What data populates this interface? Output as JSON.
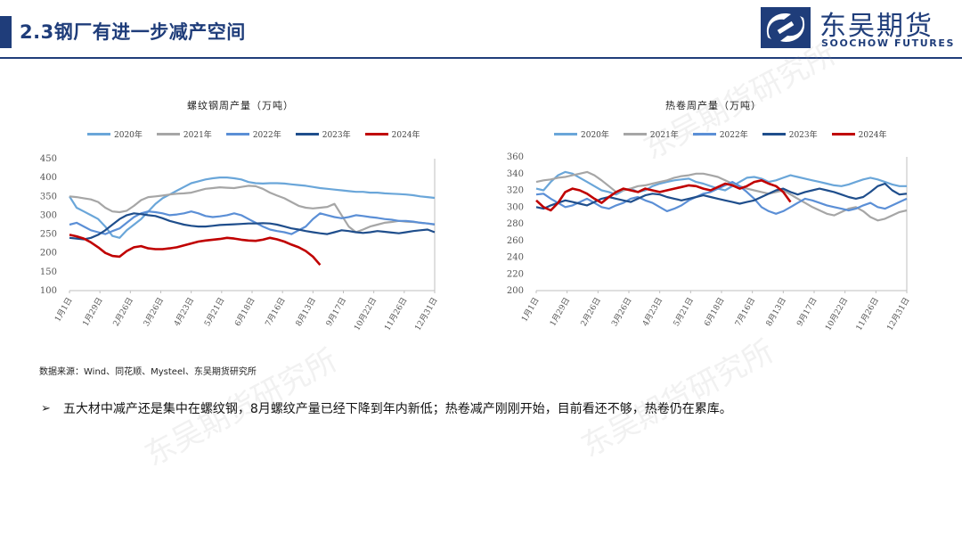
{
  "header": {
    "title": "2.3钢厂有进一步减产空间",
    "logo_cn": "东吴期货",
    "logo_en": "SOOCHOW FUTURES"
  },
  "colors": {
    "brand": "#1f3d7a",
    "s2020": "#6aa6d9",
    "s2021": "#a6a6a6",
    "s2022": "#5b8fd6",
    "s2023": "#1f4e8c",
    "s2024": "#c00000"
  },
  "watermark": "东吴期货研究所",
  "source_note": "数据来源：Wind、同花顺、Mysteel、东吴期货研究所",
  "bullet": {
    "symbol": "➢",
    "text": "五大材中减产还是集中在螺纹钢，8月螺纹产量已经下降到年内新低；热卷减产刚刚开始，目前看还不够，热卷仍在累库。"
  },
  "chart_data": [
    {
      "type": "line",
      "title": "螺纹钢周产量（万吨）",
      "x_ticks": [
        "1月1日",
        "1月29日",
        "2月26日",
        "3月26日",
        "4月23日",
        "5月21日",
        "6月18日",
        "7月16日",
        "8月13日",
        "9月17日",
        "10月22日",
        "11月26日",
        "12月31日"
      ],
      "x_weeks": 52,
      "ylim": [
        100,
        450
      ],
      "y_ticks": [
        100,
        150,
        200,
        250,
        300,
        350,
        400,
        450
      ],
      "grid": false,
      "legend": "top",
      "series": [
        {
          "name": "2020年",
          "color_key": "s2020",
          "values": [
            350,
            320,
            310,
            300,
            290,
            270,
            245,
            240,
            260,
            275,
            290,
            310,
            330,
            345,
            355,
            365,
            375,
            385,
            390,
            395,
            398,
            400,
            400,
            398,
            395,
            388,
            385,
            384,
            385,
            385,
            384,
            382,
            380,
            378,
            375,
            372,
            370,
            368,
            366,
            364,
            362,
            362,
            360,
            360,
            358,
            357,
            356,
            355,
            353,
            350,
            348,
            346
          ]
        },
        {
          "name": "2021年",
          "color_key": "s2021",
          "values": [
            350,
            348,
            345,
            342,
            335,
            320,
            310,
            308,
            312,
            325,
            340,
            348,
            350,
            352,
            355,
            357,
            358,
            360,
            365,
            370,
            372,
            374,
            373,
            372,
            375,
            378,
            377,
            370,
            360,
            352,
            345,
            335,
            325,
            320,
            318,
            320,
            322,
            330,
            300,
            270,
            255,
            262,
            270,
            275,
            280,
            282,
            285,
            283,
            282,
            280,
            278,
            275
          ]
        },
        {
          "name": "2022年",
          "color_key": "s2022",
          "values": [
            275,
            280,
            270,
            260,
            255,
            250,
            258,
            265,
            280,
            295,
            305,
            310,
            308,
            305,
            300,
            302,
            305,
            310,
            305,
            298,
            295,
            297,
            300,
            305,
            300,
            290,
            280,
            270,
            262,
            258,
            255,
            250,
            260,
            270,
            290,
            305,
            300,
            295,
            292,
            295,
            300,
            298,
            295,
            293,
            290,
            288,
            285,
            285,
            283,
            280,
            278,
            276
          ]
        },
        {
          "name": "2023年",
          "color_key": "s2023",
          "values": [
            240,
            238,
            236,
            240,
            248,
            260,
            275,
            290,
            300,
            305,
            303,
            300,
            298,
            292,
            285,
            280,
            275,
            272,
            270,
            270,
            272,
            274,
            275,
            276,
            277,
            278,
            278,
            279,
            278,
            275,
            270,
            265,
            262,
            258,
            255,
            252,
            250,
            255,
            260,
            258,
            255,
            253,
            255,
            258,
            256,
            254,
            252,
            255,
            258,
            260,
            262,
            255
          ]
        },
        {
          "name": "2024年",
          "color_key": "s2024",
          "values": [
            248,
            244,
            238,
            228,
            215,
            200,
            192,
            190,
            205,
            215,
            218,
            212,
            210,
            210,
            212,
            215,
            220,
            225,
            230,
            233,
            235,
            237,
            240,
            238,
            235,
            233,
            232,
            235,
            240,
            236,
            230,
            222,
            215,
            205,
            190,
            168
          ]
        }
      ]
    },
    {
      "type": "line",
      "title": "热卷周产量（万吨）",
      "x_ticks": [
        "1月1日",
        "1月29日",
        "2月26日",
        "3月26日",
        "4月23日",
        "5月21日",
        "6月18日",
        "7月16日",
        "8月13日",
        "9月17日",
        "10月22日",
        "11月26日",
        "12月31日"
      ],
      "x_weeks": 52,
      "ylim": [
        200,
        360
      ],
      "y_ticks": [
        200,
        220,
        240,
        260,
        280,
        300,
        320,
        340,
        360
      ],
      "grid": false,
      "legend": "top",
      "series": [
        {
          "name": "2020年",
          "color_key": "s2020",
          "values": [
            322,
            320,
            330,
            338,
            342,
            340,
            335,
            330,
            325,
            320,
            318,
            315,
            320,
            322,
            318,
            320,
            325,
            328,
            330,
            332,
            333,
            334,
            330,
            328,
            325,
            322,
            320,
            325,
            330,
            335,
            336,
            334,
            330,
            332,
            335,
            338,
            336,
            334,
            332,
            330,
            328,
            326,
            325,
            327,
            330,
            333,
            335,
            333,
            330,
            327,
            325,
            325
          ]
        },
        {
          "name": "2021年",
          "color_key": "s2021",
          "values": [
            330,
            332,
            333,
            335,
            336,
            338,
            340,
            342,
            338,
            332,
            325,
            318,
            320,
            322,
            325,
            326,
            328,
            330,
            332,
            335,
            337,
            338,
            340,
            340,
            338,
            336,
            332,
            328,
            325,
            322,
            320,
            318,
            316,
            318,
            320,
            315,
            310,
            305,
            300,
            296,
            292,
            290,
            294,
            298,
            300,
            295,
            288,
            284,
            286,
            290,
            294,
            296
          ]
        },
        {
          "name": "2022年",
          "color_key": "s2022",
          "values": [
            315,
            316,
            310,
            305,
            300,
            302,
            306,
            310,
            305,
            300,
            298,
            302,
            305,
            310,
            312,
            308,
            305,
            300,
            295,
            298,
            302,
            308,
            312,
            316,
            318,
            322,
            326,
            330,
            325,
            318,
            310,
            300,
            295,
            292,
            295,
            300,
            305,
            310,
            308,
            305,
            302,
            300,
            298,
            296,
            298,
            302,
            305,
            300,
            298,
            302,
            306,
            310
          ]
        },
        {
          "name": "2023年",
          "color_key": "s2023",
          "values": [
            300,
            298,
            302,
            305,
            308,
            306,
            304,
            302,
            306,
            310,
            312,
            310,
            308,
            306,
            310,
            314,
            316,
            315,
            312,
            310,
            308,
            310,
            312,
            314,
            312,
            310,
            308,
            306,
            304,
            306,
            308,
            312,
            316,
            320,
            322,
            318,
            315,
            318,
            320,
            322,
            320,
            318,
            315,
            312,
            310,
            312,
            318,
            325,
            328,
            320,
            315,
            316
          ]
        },
        {
          "name": "2024年",
          "color_key": "s2024",
          "values": [
            308,
            300,
            296,
            305,
            318,
            322,
            320,
            316,
            310,
            305,
            312,
            318,
            322,
            320,
            318,
            322,
            320,
            318,
            320,
            322,
            324,
            326,
            325,
            322,
            320,
            324,
            328,
            326,
            322,
            325,
            330,
            332,
            328,
            325,
            318,
            306
          ]
        }
      ]
    }
  ]
}
